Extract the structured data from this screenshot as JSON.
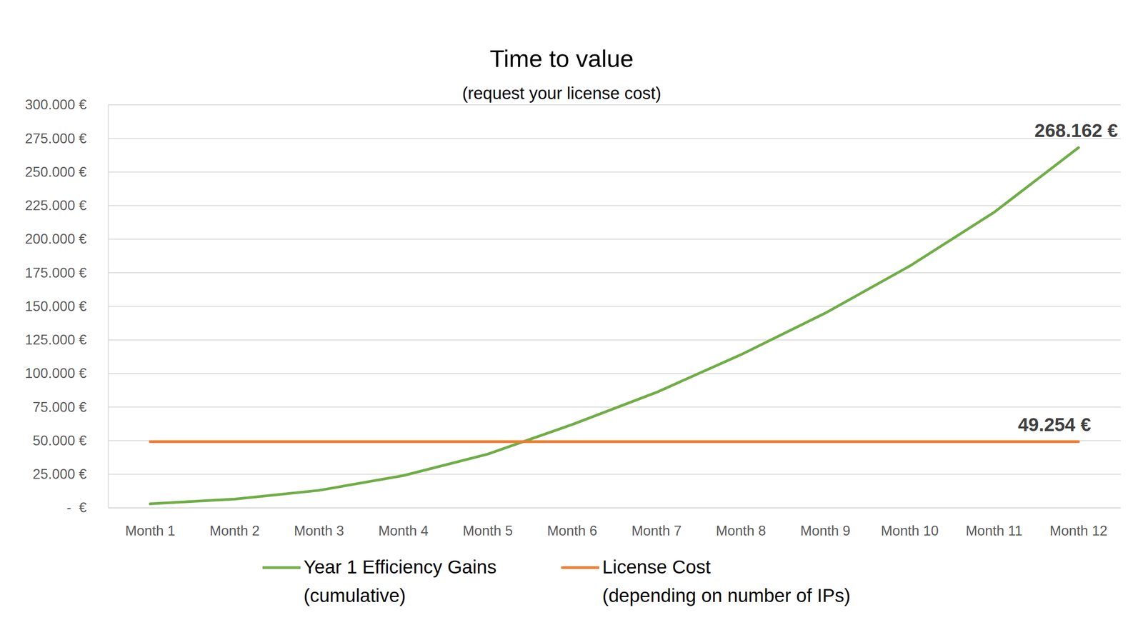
{
  "chart_data": {
    "type": "line",
    "title": "Time to value",
    "subtitle": "(request your license cost)",
    "categories": [
      "Month 1",
      "Month 2",
      "Month 3",
      "Month 4",
      "Month 5",
      "Month 6",
      "Month 7",
      "Month 8",
      "Month 9",
      "Month 10",
      "Month 11",
      "Month 12"
    ],
    "series": [
      {
        "name": "Year 1 Efficiency Gains\n(cumulative)",
        "color": "#70ad47",
        "values": [
          3000,
          6500,
          13000,
          24000,
          40000,
          62000,
          86000,
          114000,
          145000,
          180000,
          220000,
          268162
        ],
        "value_labels": [
          null,
          null,
          null,
          null,
          null,
          null,
          null,
          null,
          null,
          null,
          null,
          "268.162 €"
        ]
      },
      {
        "name": "License Cost\n(depending on number of IPs)",
        "color": "#ed7d31",
        "values": [
          49254,
          49254,
          49254,
          49254,
          49254,
          49254,
          49254,
          49254,
          49254,
          49254,
          49254,
          49254
        ],
        "value_labels": [
          null,
          null,
          null,
          null,
          null,
          null,
          null,
          null,
          null,
          null,
          null,
          "49.254 €"
        ]
      }
    ],
    "ylim": [
      0,
      300000
    ],
    "yticks": [
      {
        "value": 0,
        "label": "-  €"
      },
      {
        "value": 25000,
        "label": "25.000 €"
      },
      {
        "value": 50000,
        "label": "50.000 €"
      },
      {
        "value": 75000,
        "label": "75.000 €"
      },
      {
        "value": 100000,
        "label": "100.000 €"
      },
      {
        "value": 125000,
        "label": "125.000 €"
      },
      {
        "value": 150000,
        "label": "150.000 €"
      },
      {
        "value": 175000,
        "label": "175.000 €"
      },
      {
        "value": 200000,
        "label": "200.000 €"
      },
      {
        "value": 225000,
        "label": "225.000 €"
      },
      {
        "value": 250000,
        "label": "250.000 €"
      },
      {
        "value": 275000,
        "label": "275.000 €"
      },
      {
        "value": 300000,
        "label": "300.000 €"
      }
    ],
    "grid": true,
    "legend": "bottom",
    "data_labels": true
  }
}
